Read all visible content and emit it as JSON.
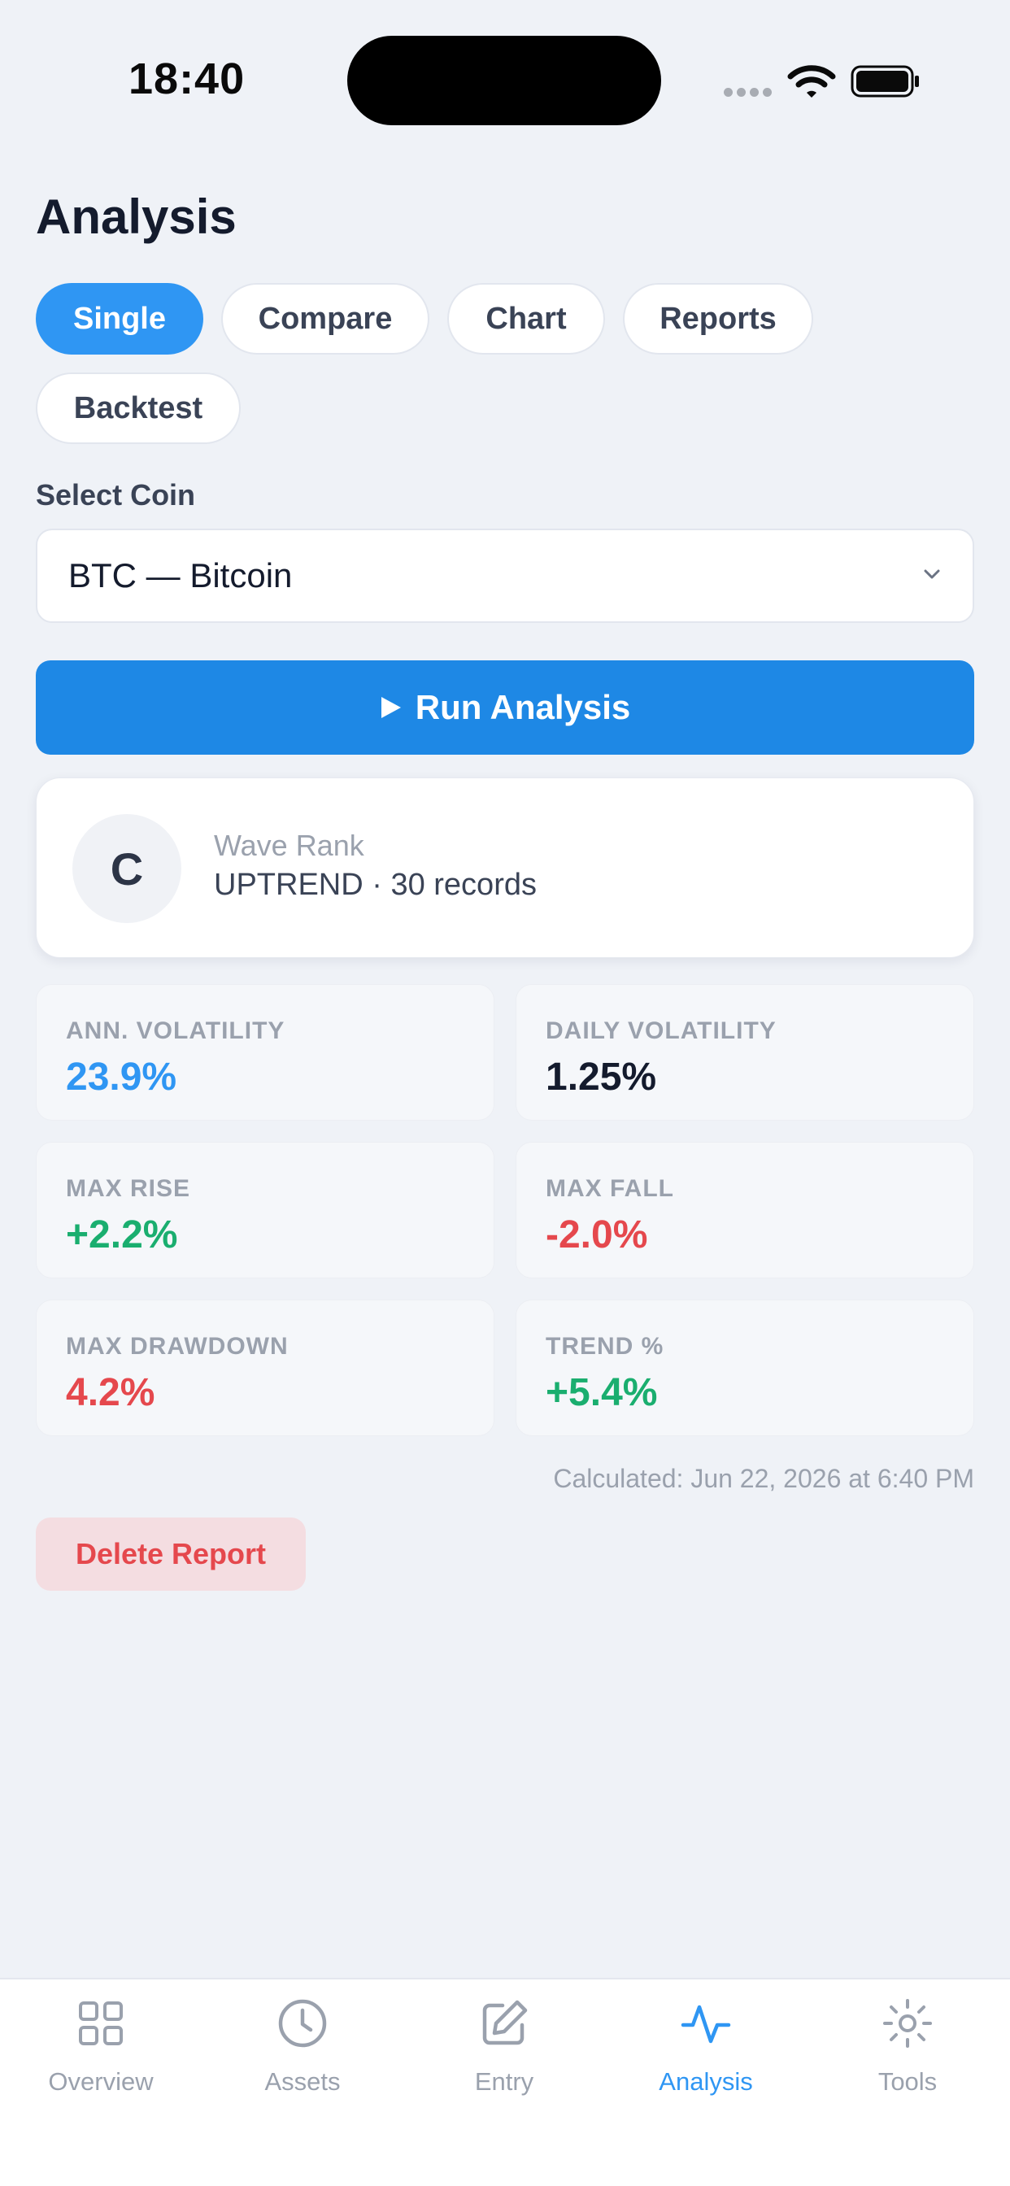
{
  "status_bar": {
    "time": "18:40"
  },
  "page_title": "Analysis",
  "tabs": [
    {
      "label": "Single",
      "active": true
    },
    {
      "label": "Compare",
      "active": false
    },
    {
      "label": "Chart",
      "active": false
    },
    {
      "label": "Reports",
      "active": false
    },
    {
      "label": "Backtest",
      "active": false
    }
  ],
  "coin_select": {
    "label": "Select Coin",
    "value": "BTC — Bitcoin"
  },
  "run_button": {
    "label": "Run Analysis",
    "icon": "play-icon"
  },
  "rank_card": {
    "badge": "C",
    "label": "Wave Rank",
    "detail": "UPTREND · 30 records"
  },
  "stats": [
    {
      "label": "ANN. VOLATILITY",
      "value": "23.9%",
      "color": "#2f96f3"
    },
    {
      "label": "DAILY VOLATILITY",
      "value": "1.25%",
      "color": "#141b2d"
    },
    {
      "label": "MAX RISE",
      "value": "+2.2%",
      "color": "#1aae6f"
    },
    {
      "label": "MAX FALL",
      "value": "-2.0%",
      "color": "#e5484d"
    },
    {
      "label": "MAX DRAWDOWN",
      "value": "4.2%",
      "color": "#e5484d"
    },
    {
      "label": "TREND %",
      "value": "+5.4%",
      "color": "#1aae6f"
    }
  ],
  "calculated_text": "Calculated: Jun 22, 2026 at 6:40 PM",
  "delete_button": {
    "label": "Delete Report"
  },
  "tab_bar": {
    "items": [
      {
        "label": "Overview",
        "icon": "grid-icon",
        "active": false
      },
      {
        "label": "Assets",
        "icon": "clock-icon",
        "active": false
      },
      {
        "label": "Entry",
        "icon": "edit-icon",
        "active": false
      },
      {
        "label": "Analysis",
        "icon": "activity-icon",
        "active": true
      },
      {
        "label": "Tools",
        "icon": "sun-icon",
        "active": false
      }
    ]
  },
  "colors": {
    "accent": "#2f96f3",
    "button": "#1e88e5",
    "positive": "#1aae6f",
    "negative": "#e5484d"
  }
}
